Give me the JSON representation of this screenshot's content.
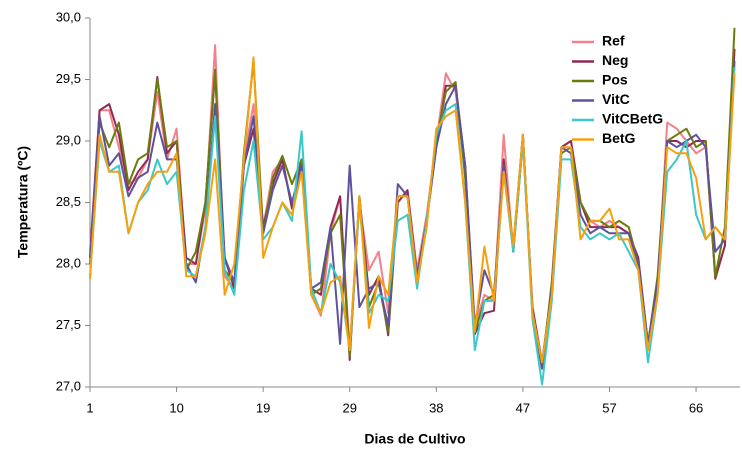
{
  "chart_data": {
    "type": "line",
    "y_label": "Temperatura (ºC)",
    "x_label": "Dias de Cultivo",
    "categories": [
      "1",
      null,
      null,
      null,
      null,
      null,
      null,
      null,
      null,
      "10",
      null,
      null,
      null,
      null,
      null,
      null,
      null,
      null,
      "19",
      null,
      null,
      null,
      null,
      null,
      null,
      null,
      null,
      "29",
      null,
      null,
      null,
      null,
      null,
      null,
      null,
      null,
      "38",
      null,
      null,
      null,
      null,
      null,
      null,
      null,
      null,
      "47",
      null,
      null,
      null,
      null,
      null,
      null,
      null,
      null,
      "57",
      null,
      null,
      null,
      null,
      null,
      null,
      null,
      null,
      "66",
      null,
      null,
      null,
      null
    ],
    "ylim": [
      27,
      30
    ],
    "yticks": [
      {
        "value": 27,
        "label": "27,0"
      },
      {
        "value": 27.5,
        "label": "27,5"
      },
      {
        "value": 28,
        "label": "28,0"
      },
      {
        "value": 28.5,
        "label": "28,5"
      },
      {
        "value": 29,
        "label": "29,0"
      },
      {
        "value": 29.5,
        "label": "29,5"
      },
      {
        "value": 30,
        "label": "30,0"
      }
    ],
    "legend": "upper right",
    "series": [
      {
        "name": "Ref",
        "color": "#f4808a",
        "values": [
          28.1,
          29.25,
          29.25,
          28.95,
          28.65,
          28.7,
          28.85,
          29.4,
          28.85,
          29.1,
          28.0,
          28.0,
          28.45,
          29.78,
          27.9,
          27.8,
          28.85,
          29.3,
          28.3,
          28.75,
          28.85,
          28.45,
          28.8,
          27.75,
          27.58,
          28.25,
          28.55,
          27.3,
          28.5,
          27.95,
          28.1,
          27.6,
          28.5,
          28.6,
          27.95,
          28.4,
          29.0,
          29.55,
          29.4,
          28.75,
          27.5,
          27.75,
          27.7,
          29.05,
          28.1,
          29.05,
          27.6,
          27.15,
          27.85,
          28.95,
          29.0,
          28.5,
          28.35,
          28.3,
          28.35,
          28.3,
          28.25,
          28.0,
          27.3,
          27.8,
          29.15,
          29.1,
          29.0,
          28.9,
          28.95,
          27.9,
          28.15,
          29.75
        ]
      },
      {
        "name": "Neg",
        "color": "#8e2a55",
        "values": [
          28.05,
          29.25,
          29.3,
          29.05,
          28.6,
          28.75,
          28.85,
          29.52,
          28.9,
          29.0,
          28.05,
          28.0,
          28.5,
          29.55,
          28.05,
          27.8,
          28.8,
          29.1,
          28.3,
          28.65,
          28.85,
          28.45,
          28.85,
          27.8,
          27.75,
          28.3,
          28.55,
          27.22,
          28.55,
          27.75,
          27.9,
          27.42,
          28.5,
          28.6,
          27.9,
          28.35,
          28.95,
          29.45,
          29.45,
          28.8,
          27.43,
          27.6,
          27.62,
          28.85,
          28.1,
          29.0,
          27.65,
          27.2,
          27.8,
          28.95,
          29.0,
          28.5,
          28.3,
          28.3,
          28.3,
          28.3,
          28.25,
          28.05,
          27.35,
          27.85,
          29.0,
          29.0,
          28.95,
          29.0,
          29.0,
          27.88,
          28.15,
          29.75
        ]
      },
      {
        "name": "Pos",
        "color": "#6b7b0c",
        "values": [
          28.0,
          29.15,
          28.95,
          29.15,
          28.65,
          28.85,
          28.9,
          29.5,
          28.95,
          29.0,
          27.95,
          28.1,
          28.5,
          29.58,
          27.95,
          27.85,
          28.9,
          29.65,
          28.25,
          28.7,
          28.88,
          28.65,
          28.85,
          27.75,
          27.8,
          28.25,
          28.4,
          27.25,
          28.55,
          27.65,
          27.85,
          27.45,
          28.55,
          28.55,
          27.9,
          28.35,
          29.0,
          29.4,
          29.48,
          28.7,
          27.45,
          27.7,
          27.75,
          28.8,
          28.15,
          29.05,
          27.6,
          27.15,
          27.85,
          28.9,
          28.95,
          28.5,
          28.35,
          28.35,
          28.3,
          28.35,
          28.3,
          28.0,
          27.35,
          27.9,
          29.0,
          29.05,
          29.1,
          28.95,
          29.0,
          27.9,
          28.3,
          29.92
        ]
      },
      {
        "name": "VitC",
        "color": "#5e529c",
        "values": [
          28.05,
          29.2,
          28.8,
          28.9,
          28.55,
          28.7,
          28.75,
          29.15,
          28.85,
          28.85,
          28.0,
          27.85,
          28.3,
          29.3,
          28.05,
          27.85,
          28.8,
          29.2,
          28.25,
          28.6,
          28.8,
          28.5,
          28.8,
          27.8,
          27.85,
          28.3,
          27.35,
          28.8,
          27.65,
          27.8,
          27.85,
          27.5,
          28.65,
          28.55,
          27.9,
          28.35,
          28.95,
          29.3,
          29.45,
          28.8,
          27.5,
          27.95,
          27.75,
          28.8,
          28.1,
          29.05,
          27.6,
          27.15,
          27.8,
          28.95,
          28.9,
          28.4,
          28.25,
          28.3,
          28.25,
          28.25,
          28.25,
          28.0,
          27.35,
          27.85,
          29.0,
          28.95,
          29.0,
          29.05,
          28.95,
          28.1,
          28.2,
          29.65
        ]
      },
      {
        "name": "VitCBetG",
        "color": "#3cc8c8",
        "values": [
          27.9,
          29.0,
          28.75,
          28.8,
          28.25,
          28.5,
          28.6,
          28.85,
          28.65,
          28.75,
          27.95,
          27.9,
          28.3,
          29.2,
          27.95,
          27.75,
          28.6,
          29.0,
          28.2,
          28.3,
          28.5,
          28.35,
          29.08,
          27.8,
          27.6,
          28.0,
          27.85,
          27.3,
          28.5,
          27.6,
          27.75,
          27.7,
          28.35,
          28.4,
          27.8,
          28.35,
          29.05,
          29.25,
          29.3,
          28.5,
          27.3,
          27.7,
          27.7,
          28.75,
          28.1,
          29.0,
          27.55,
          27.02,
          27.7,
          28.85,
          28.85,
          28.3,
          28.2,
          28.25,
          28.2,
          28.25,
          28.1,
          27.95,
          27.2,
          27.75,
          28.75,
          28.85,
          29.0,
          28.4,
          28.2,
          28.3,
          28.2,
          29.6
        ]
      },
      {
        "name": "BetG",
        "color": "#f5a10f",
        "values": [
          27.88,
          29.05,
          28.75,
          28.75,
          28.25,
          28.5,
          28.65,
          28.75,
          28.75,
          28.9,
          27.9,
          27.9,
          28.25,
          28.85,
          27.75,
          28.0,
          28.85,
          29.68,
          28.05,
          28.3,
          28.5,
          28.4,
          28.75,
          27.75,
          27.6,
          27.85,
          27.9,
          27.3,
          28.55,
          27.48,
          27.9,
          27.75,
          28.55,
          28.55,
          27.85,
          28.3,
          29.1,
          29.2,
          29.25,
          28.5,
          27.45,
          28.14,
          27.7,
          28.75,
          28.15,
          29.05,
          27.6,
          27.2,
          27.75,
          28.95,
          28.95,
          28.2,
          28.35,
          28.35,
          28.45,
          28.2,
          28.2,
          27.95,
          27.3,
          27.75,
          28.95,
          28.9,
          28.9,
          28.7,
          28.2,
          28.3,
          28.2,
          29.55
        ]
      }
    ]
  }
}
